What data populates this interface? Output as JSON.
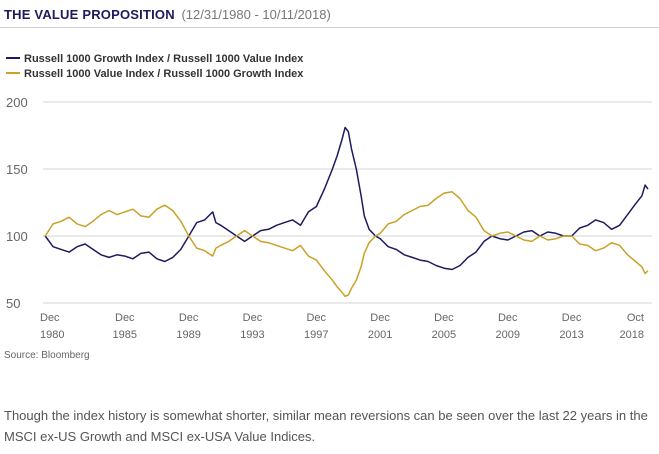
{
  "header": {
    "title": "THE VALUE PROPOSITION",
    "subtitle": "(12/31/1980 - 10/11/2018)"
  },
  "colors": {
    "growth_value": "#1e1a5e",
    "value_growth": "#c9a227",
    "grid": "#d6d6d6"
  },
  "chart_data": {
    "type": "line",
    "title": "",
    "xlabel": "",
    "ylabel": "",
    "ylim": [
      50,
      200
    ],
    "yticks": [
      "200",
      "150",
      "100",
      "50"
    ],
    "xlim": [
      1980.99,
      2018.78
    ],
    "xticks": [
      {
        "line1": "Dec",
        "line2": "1980",
        "x": 1980.99
      },
      {
        "line1": "Dec",
        "line2": "1985",
        "x": 1985.99
      },
      {
        "line1": "Dec",
        "line2": "1989",
        "x": 1989.99
      },
      {
        "line1": "Dec",
        "line2": "1993",
        "x": 1993.99
      },
      {
        "line1": "Dec",
        "line2": "1997",
        "x": 1997.99
      },
      {
        "line1": "Dec",
        "line2": "2001",
        "x": 2001.99
      },
      {
        "line1": "Dec",
        "line2": "2005",
        "x": 2005.99
      },
      {
        "line1": "Dec",
        "line2": "2009",
        "x": 2009.99
      },
      {
        "line1": "Dec",
        "line2": "2013",
        "x": 2013.99
      },
      {
        "line1": "Oct",
        "line2": "2018",
        "x": 2018.78
      }
    ],
    "grid": true,
    "legend_position": "top-left",
    "series": [
      {
        "name": "Russell 1000 Growth Index / Russell 1000 Value Index",
        "color": "#1e1a5e",
        "points": [
          [
            1981.0,
            100
          ],
          [
            1981.5,
            92
          ],
          [
            1982.0,
            90
          ],
          [
            1982.5,
            88
          ],
          [
            1983.0,
            92
          ],
          [
            1983.5,
            94
          ],
          [
            1984.0,
            90
          ],
          [
            1984.5,
            86
          ],
          [
            1985.0,
            84
          ],
          [
            1985.5,
            86
          ],
          [
            1986.0,
            85
          ],
          [
            1986.5,
            83
          ],
          [
            1987.0,
            87
          ],
          [
            1987.5,
            88
          ],
          [
            1988.0,
            83
          ],
          [
            1988.5,
            81
          ],
          [
            1989.0,
            84
          ],
          [
            1989.5,
            90
          ],
          [
            1990.0,
            100
          ],
          [
            1990.5,
            110
          ],
          [
            1991.0,
            112
          ],
          [
            1991.5,
            118
          ],
          [
            1991.7,
            110
          ],
          [
            1992.0,
            108
          ],
          [
            1992.5,
            104
          ],
          [
            1993.0,
            100
          ],
          [
            1993.5,
            96
          ],
          [
            1994.0,
            100
          ],
          [
            1994.5,
            104
          ],
          [
            1995.0,
            105
          ],
          [
            1995.5,
            108
          ],
          [
            1996.0,
            110
          ],
          [
            1996.5,
            112
          ],
          [
            1997.0,
            108
          ],
          [
            1997.5,
            118
          ],
          [
            1998.0,
            122
          ],
          [
            1998.5,
            135
          ],
          [
            1999.0,
            150
          ],
          [
            1999.3,
            160
          ],
          [
            1999.6,
            172
          ],
          [
            1999.8,
            181
          ],
          [
            2000.0,
            178
          ],
          [
            2000.2,
            165
          ],
          [
            2000.5,
            150
          ],
          [
            2000.8,
            130
          ],
          [
            2001.0,
            115
          ],
          [
            2001.3,
            105
          ],
          [
            2001.7,
            100
          ],
          [
            2002.0,
            98
          ],
          [
            2002.5,
            92
          ],
          [
            2003.0,
            90
          ],
          [
            2003.5,
            86
          ],
          [
            2004.0,
            84
          ],
          [
            2004.5,
            82
          ],
          [
            2005.0,
            81
          ],
          [
            2005.5,
            78
          ],
          [
            2006.0,
            76
          ],
          [
            2006.5,
            75
          ],
          [
            2007.0,
            78
          ],
          [
            2007.5,
            84
          ],
          [
            2008.0,
            88
          ],
          [
            2008.5,
            96
          ],
          [
            2009.0,
            100
          ],
          [
            2009.5,
            98
          ],
          [
            2010.0,
            97
          ],
          [
            2010.5,
            100
          ],
          [
            2011.0,
            103
          ],
          [
            2011.5,
            104
          ],
          [
            2012.0,
            100
          ],
          [
            2012.5,
            103
          ],
          [
            2013.0,
            102
          ],
          [
            2013.5,
            100
          ],
          [
            2014.0,
            100
          ],
          [
            2014.5,
            106
          ],
          [
            2015.0,
            108
          ],
          [
            2015.5,
            112
          ],
          [
            2016.0,
            110
          ],
          [
            2016.5,
            105
          ],
          [
            2017.0,
            108
          ],
          [
            2017.5,
            116
          ],
          [
            2018.0,
            124
          ],
          [
            2018.4,
            130
          ],
          [
            2018.6,
            138
          ],
          [
            2018.78,
            135
          ]
        ]
      },
      {
        "name": "Russell 1000 Value Index / Russell 1000 Growth Index",
        "color": "#c9a227",
        "points": [
          [
            1981.0,
            100
          ],
          [
            1981.5,
            109
          ],
          [
            1982.0,
            111
          ],
          [
            1982.5,
            114
          ],
          [
            1983.0,
            109
          ],
          [
            1983.5,
            107
          ],
          [
            1984.0,
            111
          ],
          [
            1984.5,
            116
          ],
          [
            1985.0,
            119
          ],
          [
            1985.5,
            116
          ],
          [
            1986.0,
            118
          ],
          [
            1986.5,
            120
          ],
          [
            1987.0,
            115
          ],
          [
            1987.5,
            114
          ],
          [
            1988.0,
            120
          ],
          [
            1988.5,
            123
          ],
          [
            1989.0,
            119
          ],
          [
            1989.5,
            111
          ],
          [
            1990.0,
            100
          ],
          [
            1990.5,
            91
          ],
          [
            1991.0,
            89
          ],
          [
            1991.5,
            85
          ],
          [
            1991.7,
            91
          ],
          [
            1992.0,
            93
          ],
          [
            1992.5,
            96
          ],
          [
            1993.0,
            100
          ],
          [
            1993.5,
            104
          ],
          [
            1994.0,
            100
          ],
          [
            1994.5,
            96
          ],
          [
            1995.0,
            95
          ],
          [
            1995.5,
            93
          ],
          [
            1996.0,
            91
          ],
          [
            1996.5,
            89
          ],
          [
            1997.0,
            93
          ],
          [
            1997.5,
            85
          ],
          [
            1998.0,
            82
          ],
          [
            1998.5,
            74
          ],
          [
            1999.0,
            67
          ],
          [
            1999.3,
            62
          ],
          [
            1999.6,
            58
          ],
          [
            1999.8,
            55
          ],
          [
            2000.0,
            56
          ],
          [
            2000.2,
            61
          ],
          [
            2000.5,
            67
          ],
          [
            2000.8,
            77
          ],
          [
            2001.0,
            87
          ],
          [
            2001.3,
            95
          ],
          [
            2001.7,
            100
          ],
          [
            2002.0,
            102
          ],
          [
            2002.5,
            109
          ],
          [
            2003.0,
            111
          ],
          [
            2003.5,
            116
          ],
          [
            2004.0,
            119
          ],
          [
            2004.5,
            122
          ],
          [
            2005.0,
            123
          ],
          [
            2005.5,
            128
          ],
          [
            2006.0,
            132
          ],
          [
            2006.5,
            133
          ],
          [
            2007.0,
            128
          ],
          [
            2007.5,
            119
          ],
          [
            2008.0,
            114
          ],
          [
            2008.5,
            104
          ],
          [
            2009.0,
            100
          ],
          [
            2009.5,
            102
          ],
          [
            2010.0,
            103
          ],
          [
            2010.5,
            100
          ],
          [
            2011.0,
            97
          ],
          [
            2011.5,
            96
          ],
          [
            2012.0,
            100
          ],
          [
            2012.5,
            97
          ],
          [
            2013.0,
            98
          ],
          [
            2013.5,
            100
          ],
          [
            2014.0,
            100
          ],
          [
            2014.5,
            94
          ],
          [
            2015.0,
            93
          ],
          [
            2015.5,
            89
          ],
          [
            2016.0,
            91
          ],
          [
            2016.5,
            95
          ],
          [
            2017.0,
            93
          ],
          [
            2017.5,
            86
          ],
          [
            2018.0,
            81
          ],
          [
            2018.4,
            77
          ],
          [
            2018.6,
            72
          ],
          [
            2018.78,
            74
          ]
        ]
      }
    ]
  },
  "source": "Source: Bloomberg",
  "footnote": "Though the index history is somewhat shorter, similar mean reversions can be seen over the last 22 years in the MSCI ex-US Growth and MSCI ex-USA Value Indices."
}
